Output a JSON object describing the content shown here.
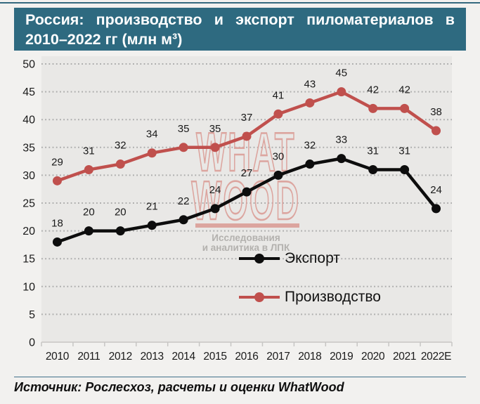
{
  "title": {
    "full": "Россия: производство и экспорт пиломатериалов в 2010–2022 гг (млн м³)",
    "line1": "Россия: производство и экспорт пиломатериалов в",
    "line2": "2010–2022 гг (млн м³)"
  },
  "watermark": {
    "word1": "WHAT",
    "word2": "WOOD",
    "caption1": "Исследования",
    "caption2": "и аналитика в ЛПК"
  },
  "source": "Источник: Рослесхоз, расчеты и оценки WhatWood",
  "colors": {
    "accent_teal": "#2e6a80",
    "export_line": "#0d0d0d",
    "production_line": "#c0504d",
    "watermark_pink": "#dca59f",
    "watermark_caption_gray": "#b3b1ae",
    "grid_dots": "#ababab",
    "axis_line": "#c7c6c4",
    "label_text": "#1a1a1a",
    "plot_bg": "#e9e8e6",
    "page_bg": "#f2f1ef"
  },
  "chart_data": {
    "type": "line",
    "title": "Россия: производство и экспорт пиломатериалов в 2010–2022 гг (млн м³)",
    "xlabel": "",
    "ylabel": "",
    "categories": [
      "2010",
      "2011",
      "2012",
      "2013",
      "2014",
      "2015",
      "2016",
      "2017",
      "2018",
      "2019",
      "2020",
      "2021",
      "2022E"
    ],
    "series": [
      {
        "name": "Экспорт",
        "color": "#0d0d0d",
        "values": [
          18,
          20,
          20,
          21,
          22,
          24,
          27,
          30,
          32,
          33,
          31,
          31,
          24
        ]
      },
      {
        "name": "Производство",
        "color": "#c0504d",
        "values": [
          29,
          31,
          32,
          34,
          35,
          35,
          37,
          41,
          43,
          45,
          42,
          42,
          38
        ]
      }
    ],
    "ylim": [
      0,
      50
    ],
    "ytick_step": 5,
    "grid": "horizontal-dotted",
    "legend_position": "inside-center",
    "data_labels": "above-points"
  }
}
